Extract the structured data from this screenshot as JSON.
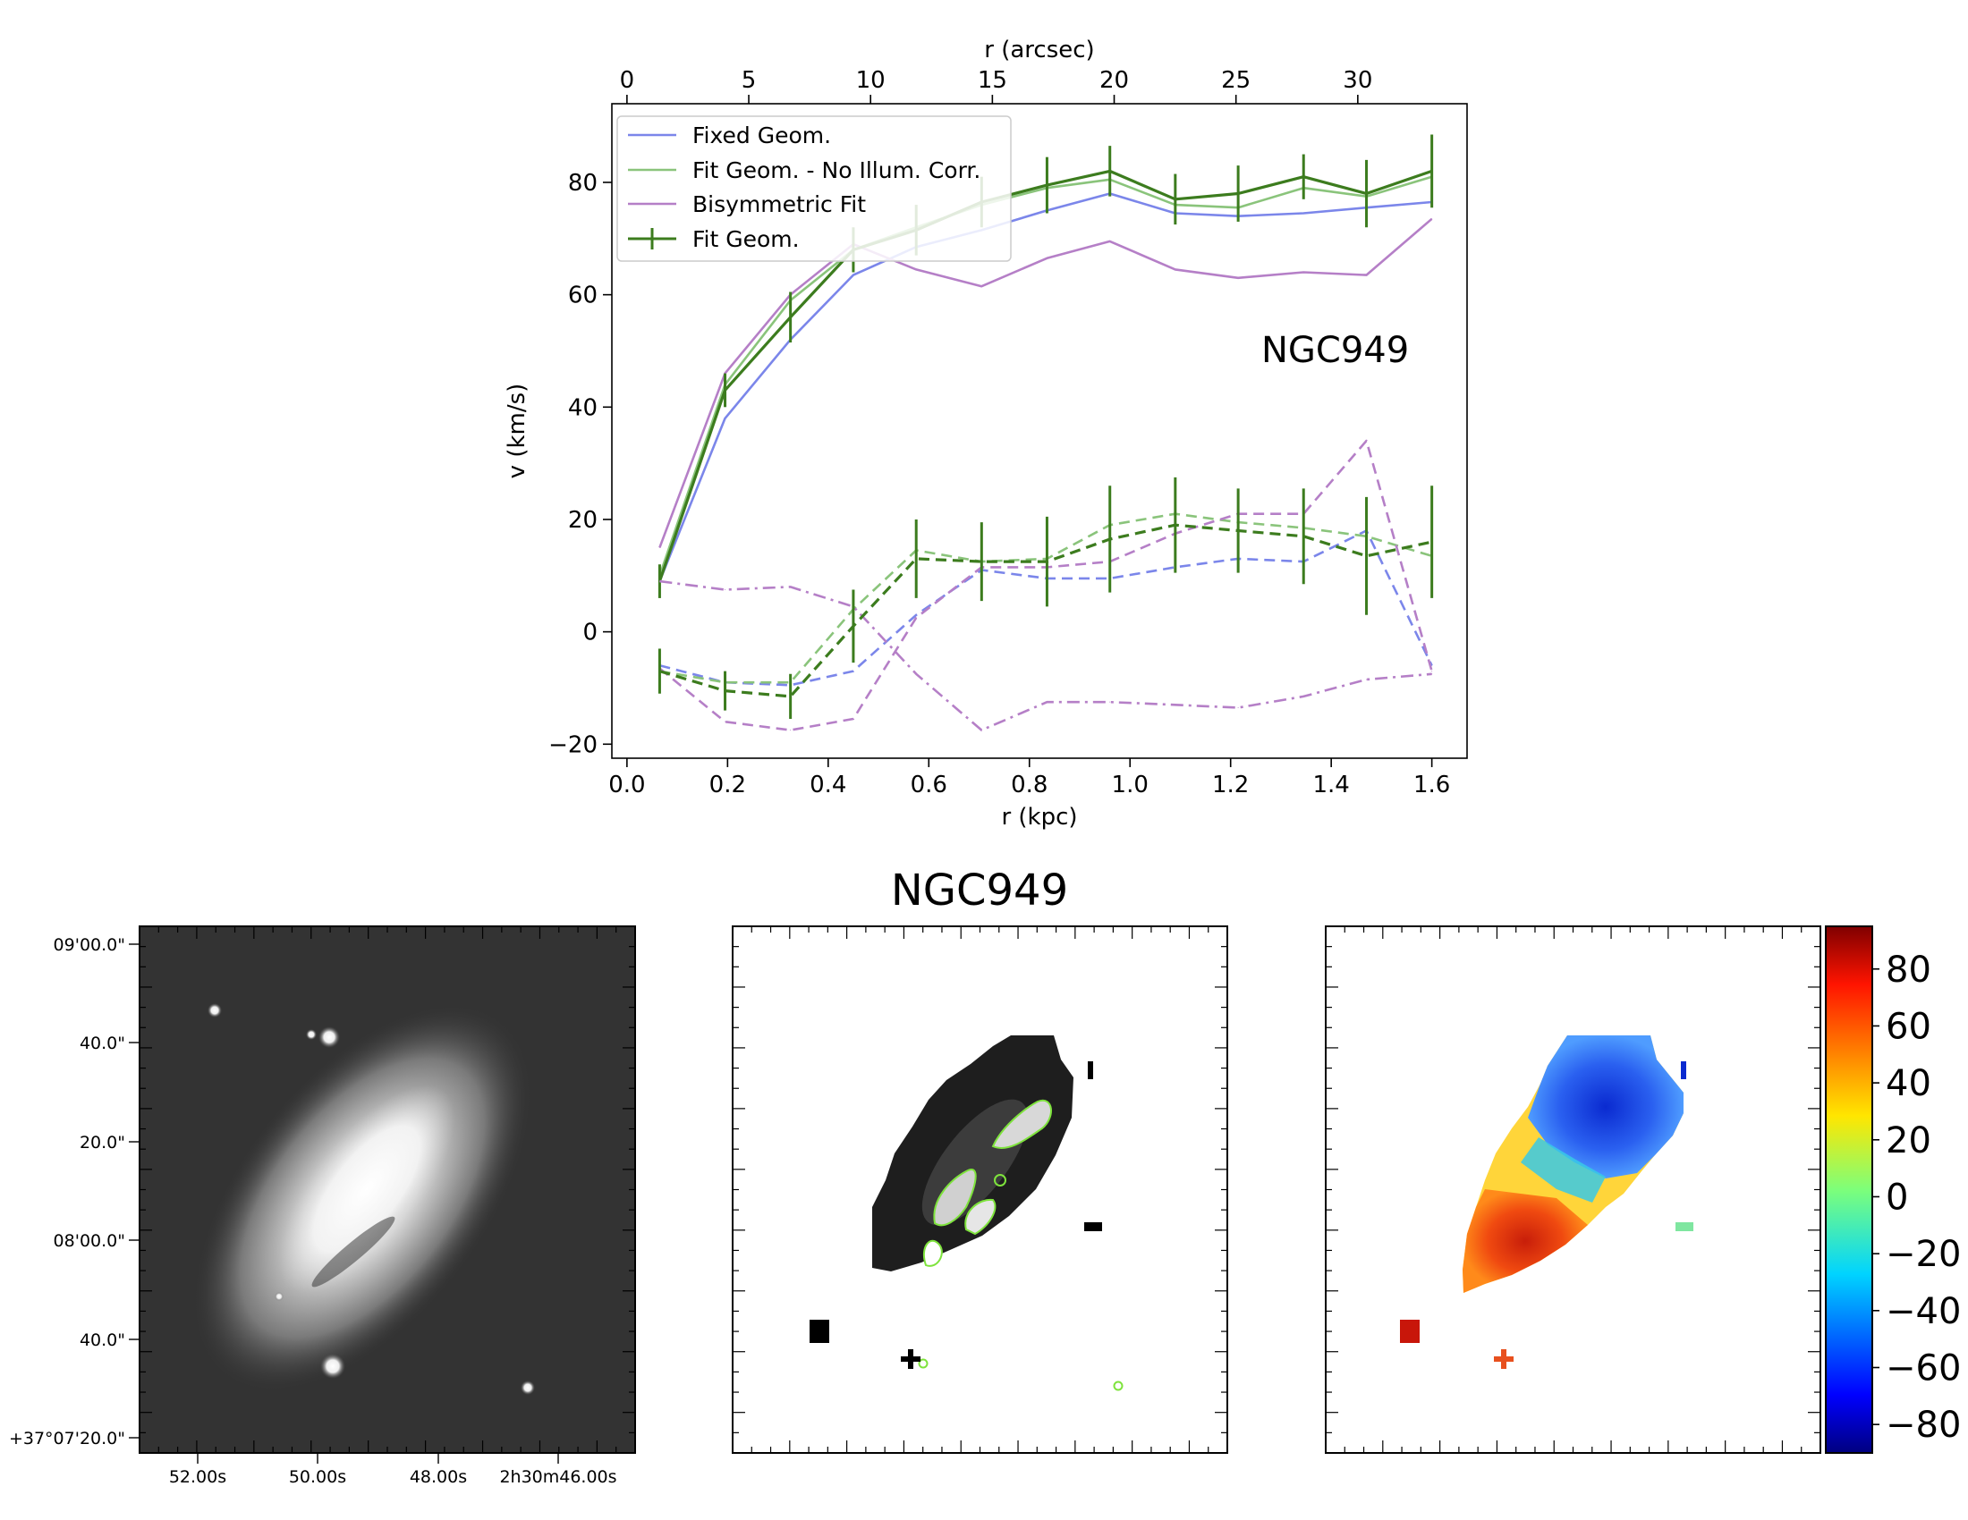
{
  "colors": {
    "fixed": "#7b86ea",
    "fit_noillum": "#8ac47b",
    "bisym": "#b57fc7",
    "fit": "#3c7c1e",
    "contour": "#7ee33c"
  },
  "chart_data": [
    {
      "type": "line",
      "annotation": "NGC949",
      "xlabel": "r (kpc)",
      "top_xlabel": "r (arcsec)",
      "ylabel": "v (km/s)",
      "xlim": [
        -0.03,
        1.67
      ],
      "ylim": [
        -22.5,
        94
      ],
      "x_ticks": [
        "0.0",
        "0.2",
        "0.4",
        "0.6",
        "0.8",
        "1.0",
        "1.2",
        "1.4",
        "1.6"
      ],
      "x_tick_values": [
        0,
        0.2,
        0.4,
        0.6,
        0.8,
        1.0,
        1.2,
        1.4,
        1.6
      ],
      "top_ticks": [
        "0",
        "5",
        "10",
        "15",
        "20",
        "25",
        "30"
      ],
      "top_tick_values": [
        0,
        5,
        10,
        15,
        20,
        25,
        30
      ],
      "arcsec_per_kpc": 20.65,
      "y_ticks": [
        "−20",
        "0",
        "20",
        "40",
        "60",
        "80"
      ],
      "y_tick_values": [
        -20,
        0,
        20,
        40,
        60,
        80
      ],
      "legend_position": "top-left",
      "x": [
        0.065,
        0.195,
        0.325,
        0.45,
        0.575,
        0.705,
        0.835,
        0.96,
        1.09,
        1.215,
        1.345,
        1.47,
        1.6
      ],
      "series": [
        {
          "name": "Fixed Geom.",
          "color_key": "fixed",
          "legend": true,
          "dash": "solid",
          "values": [
            9,
            38,
            52,
            63.5,
            68.5,
            71.5,
            75,
            78,
            74.5,
            74,
            74.5,
            75.5,
            76.5
          ]
        },
        {
          "name": "Fit Geom. - No Illum. Corr.",
          "color_key": "fit_noillum",
          "legend": true,
          "dash": "solid",
          "values": [
            10,
            44,
            59,
            68,
            72,
            76,
            79,
            80.5,
            76,
            75.5,
            79,
            77.5,
            81
          ]
        },
        {
          "name": "Bisymmetric Fit",
          "color_key": "bisym",
          "legend": true,
          "dash": "solid",
          "values": [
            15,
            46,
            60,
            69,
            64.5,
            61.5,
            66.5,
            69.5,
            64.5,
            63,
            64,
            63.5,
            73.5
          ]
        },
        {
          "name": "Fit Geom.",
          "color_key": "fit",
          "legend": true,
          "dash": "solid",
          "errorbars": true,
          "values": [
            9,
            43,
            56,
            68,
            71.5,
            76.5,
            79.5,
            82,
            77,
            78,
            81,
            78,
            82
          ],
          "errors": [
            3,
            3,
            4.5,
            4,
            4.5,
            4.5,
            5,
            4.5,
            4.5,
            5,
            4,
            6,
            6.5
          ]
        },
        {
          "name": "Fixed Geom. (radial)",
          "color_key": "fixed",
          "legend": false,
          "dash": "dashed",
          "values": [
            -6,
            -9,
            -9.5,
            -7,
            3,
            11,
            9.5,
            9.5,
            11.5,
            13,
            12.5,
            18,
            -6
          ]
        },
        {
          "name": "Fit Geom. - No Illum. Corr. (radial)",
          "color_key": "fit_noillum",
          "legend": false,
          "dash": "dashed",
          "values": [
            -7,
            -9,
            -9,
            4,
            14.5,
            12.5,
            13,
            19,
            21,
            19.5,
            18.5,
            17,
            13.5
          ]
        },
        {
          "name": "Bisymmetric Fit (radial)",
          "color_key": "bisym",
          "legend": false,
          "dash": "dashed",
          "values": [
            -6.5,
            -16,
            -17.5,
            -15.5,
            2.5,
            11.5,
            11.5,
            12.5,
            17.5,
            21,
            21,
            34,
            -7
          ]
        },
        {
          "name": "Bisymmetric Fit (tangential)",
          "color_key": "bisym",
          "legend": false,
          "dash": "dashdot",
          "values": [
            9,
            7.5,
            8,
            4.5,
            -7.5,
            -17.5,
            -12.5,
            -12.5,
            -13,
            -13.5,
            -11.5,
            -8.5,
            -7.5
          ]
        },
        {
          "name": "Fit Geom. (radial)",
          "color_key": "fit",
          "legend": false,
          "dash": "dashed",
          "errorbars": true,
          "values": [
            -7,
            -10.5,
            -11.5,
            1,
            13,
            12.5,
            12.5,
            16.5,
            19,
            18,
            17,
            13.5,
            16
          ],
          "errors": [
            4,
            3.5,
            4,
            6.5,
            7,
            7,
            8,
            9.5,
            8.5,
            7.5,
            8.5,
            10.5,
            10
          ]
        }
      ]
    },
    {
      "type": "image",
      "name": "optical image",
      "y_ticks": [
        "09'00.0\"",
        "40.0\"",
        "20.0\"",
        "08'00.0\"",
        "40.0\"",
        "+37°07'20.0\""
      ],
      "x_ticks": [
        "52.00s",
        "50.00s",
        "48.00s",
        "2h30m46.00s"
      ]
    },
    {
      "type": "image",
      "name": "intensity map",
      "title": "NGC949"
    },
    {
      "type": "heatmap",
      "name": "velocity field",
      "colorbar_range": [
        -90,
        95
      ],
      "colorbar_ticks": [
        "80",
        "60",
        "40",
        "20",
        "0",
        "−20",
        "−40",
        "−60",
        "−80"
      ],
      "colorbar_tick_values": [
        80,
        60,
        40,
        20,
        0,
        -20,
        -40,
        -60,
        -80
      ]
    }
  ]
}
